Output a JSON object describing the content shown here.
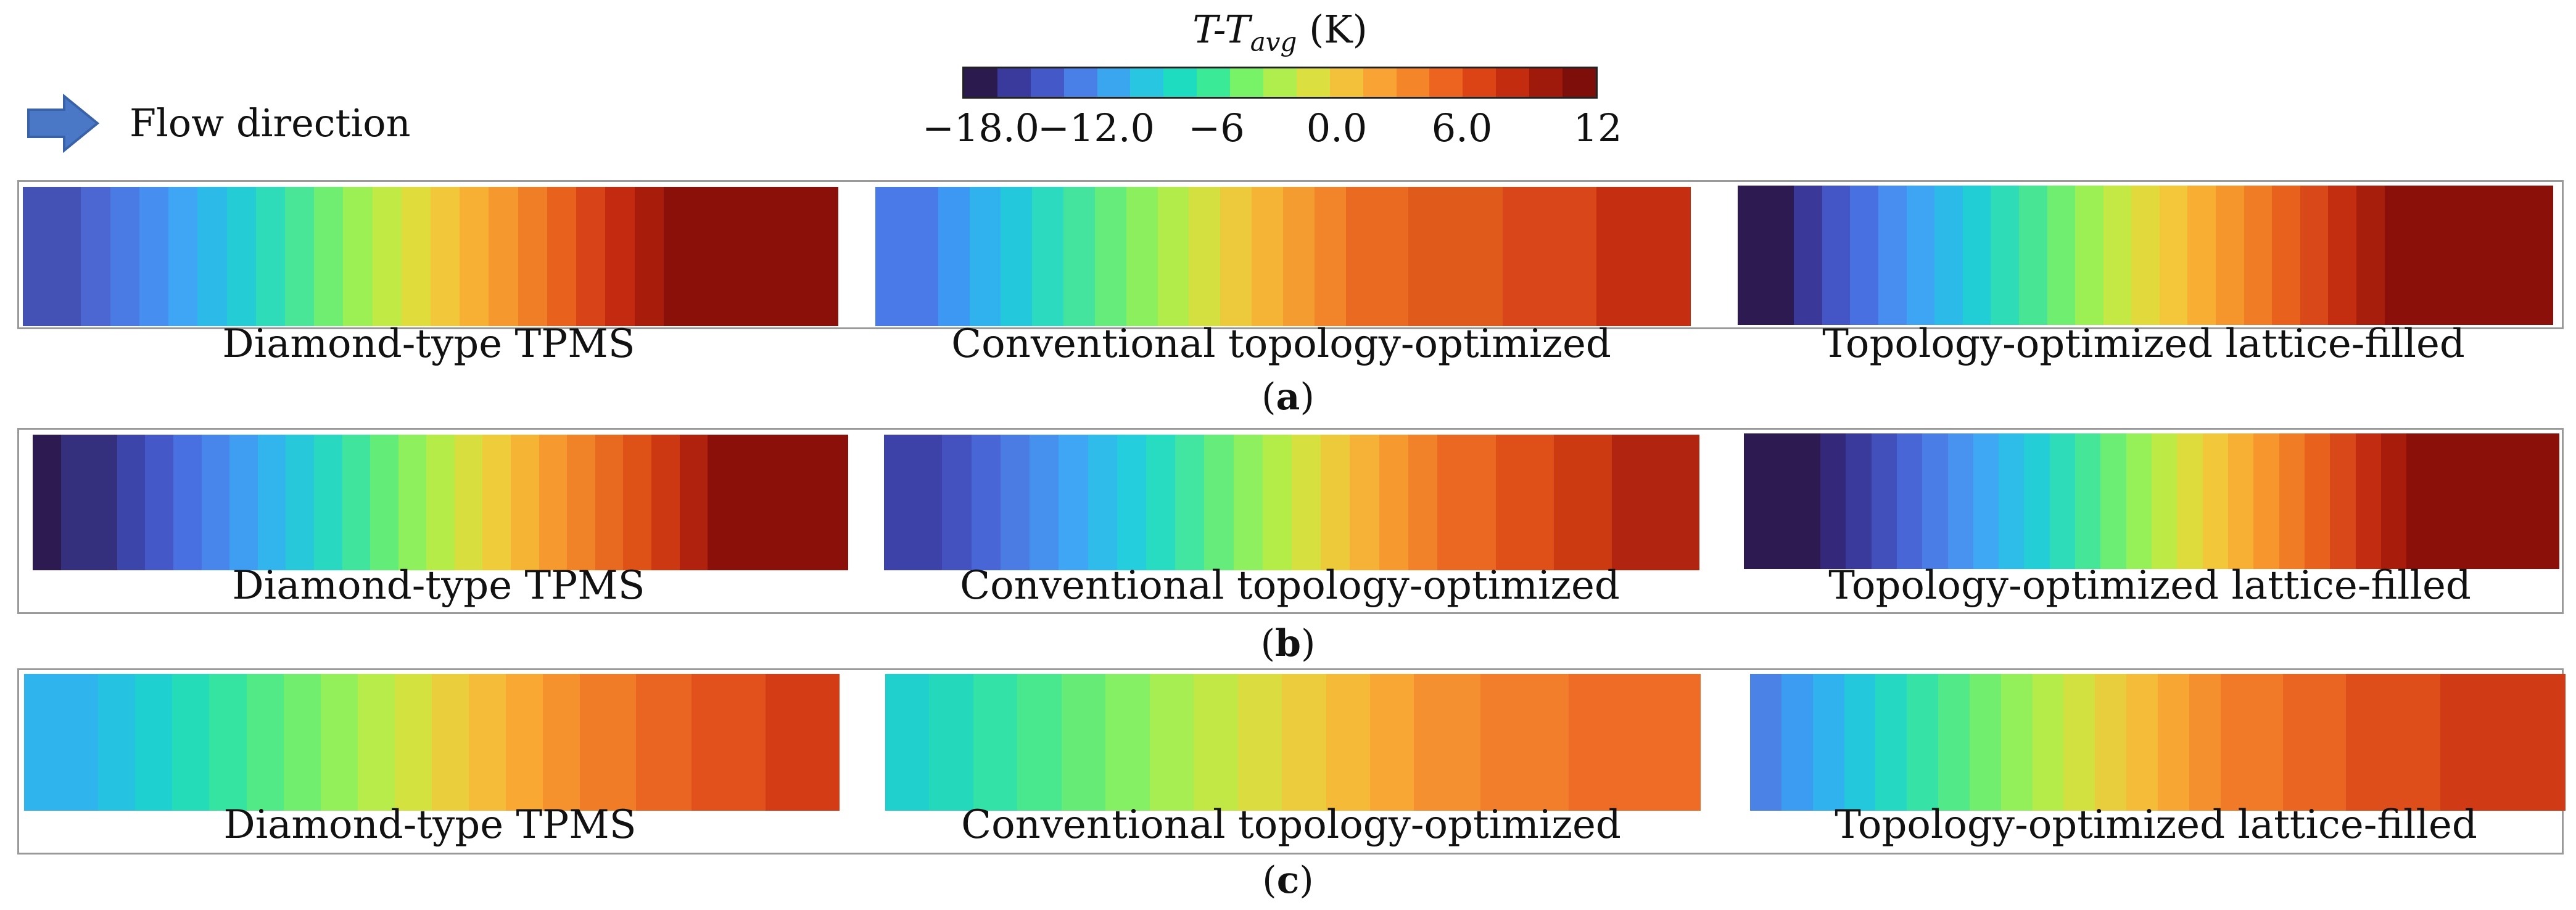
{
  "colorbar": {
    "title_main": "T-T",
    "title_sub": "avg",
    "title_unit": "(K)",
    "colors": [
      "#2b1a4e",
      "#3a3a9c",
      "#4458c8",
      "#4880e8",
      "#3aa6f0",
      "#28c6e0",
      "#1edcc0",
      "#3aea96",
      "#78f266",
      "#b0ee4e",
      "#dbe040",
      "#f3c13a",
      "#f8a333",
      "#f48629",
      "#ec6420",
      "#dc4416",
      "#c42c10",
      "#a01a0c",
      "#7e0e0a"
    ],
    "ticks": [
      "−18.0",
      "−12.0",
      "−6",
      "0.0",
      "6.0",
      "12"
    ],
    "range": [
      -18,
      12
    ]
  },
  "flow": {
    "label": "Flow direction"
  },
  "rows": [
    {
      "tag_open": "(",
      "tag": "a",
      "tag_close": ")",
      "panels": [
        {
          "label": "Diamond-type TPMS",
          "colors": [
            "#4452b6",
            "#4c66d2",
            "#4a7ae4",
            "#468ef0",
            "#3ea6f4",
            "#2cbae8",
            "#24cdd6",
            "#2edcba",
            "#48e696",
            "#6fee72",
            "#9cf054",
            "#c2ea44",
            "#e0dc3c",
            "#f2c83a",
            "#f7b033",
            "#f5982d",
            "#f07e26",
            "#e8621e",
            "#d84418",
            "#c42a10",
            "#a81c0c",
            "#8b100a"
          ],
          "widths": [
            2,
            1,
            1,
            1,
            1,
            1,
            1,
            1,
            1,
            1,
            1,
            1,
            1,
            1,
            1,
            1,
            1,
            1,
            1,
            1,
            1,
            6
          ]
        },
        {
          "label": "Conventional topology-optimized",
          "colors": [
            "#4a7ae8",
            "#3c98f2",
            "#30b2ee",
            "#24c8dc",
            "#2cdac0",
            "#44e49e",
            "#66ec7a",
            "#8cf05e",
            "#b2ec4a",
            "#d4e040",
            "#ecca3c",
            "#f6b436",
            "#f59c30",
            "#f2842a",
            "#ea6a22",
            "#e05a1c",
            "#d8461a",
            "#c62e12"
          ],
          "widths": [
            2,
            1,
            1,
            1,
            1,
            1,
            1,
            1,
            1,
            1,
            1,
            1,
            1,
            1,
            2,
            3,
            3,
            3
          ]
        },
        {
          "label": "Topology-optimized lattice-filled",
          "colors": [
            "#2c1a50",
            "#3a3898",
            "#4456c6",
            "#4870e0",
            "#488ef0",
            "#3ea4f4",
            "#2cbae8",
            "#22ced6",
            "#2edcb8",
            "#48e694",
            "#70ee70",
            "#9cf054",
            "#c4e844",
            "#e2da3c",
            "#f4c63a",
            "#f8ae33",
            "#f5962d",
            "#f07c26",
            "#e8621e",
            "#d84818",
            "#c42e10",
            "#a81e0c",
            "#8b100a"
          ],
          "widths": [
            2,
            1,
            1,
            1,
            1,
            1,
            1,
            1,
            1,
            1,
            1,
            1,
            1,
            1,
            1,
            1,
            1,
            1,
            1,
            1,
            1,
            1,
            6
          ]
        }
      ]
    },
    {
      "tag_open": "(",
      "tag": "b",
      "tag_close": ")",
      "panels": [
        {
          "label": "Diamond-type TPMS",
          "colors": [
            "#2c1a50",
            "#34307e",
            "#3c46aa",
            "#4458c8",
            "#4870e0",
            "#4886ec",
            "#409ef2",
            "#32b4ec",
            "#26c8da",
            "#28d8c0",
            "#40e49c",
            "#64ec78",
            "#8ef05c",
            "#b6ec48",
            "#d8de3e",
            "#eecc3a",
            "#f6b435",
            "#f69a2f",
            "#f08228",
            "#e86a20",
            "#de5218",
            "#cc3812",
            "#b0220e",
            "#8b100a"
          ],
          "widths": [
            1,
            2,
            1,
            1,
            1,
            1,
            1,
            1,
            1,
            1,
            1,
            1,
            1,
            1,
            1,
            1,
            1,
            1,
            1,
            1,
            1,
            1,
            1,
            5
          ]
        },
        {
          "label": "Conventional topology-optimized",
          "colors": [
            "#3c42a8",
            "#4452c0",
            "#4866d6",
            "#4a7ce4",
            "#4690ee",
            "#3ea6f4",
            "#30bcea",
            "#24cedc",
            "#28dcc2",
            "#42e6a0",
            "#66ec7a",
            "#8ef05e",
            "#b4ec48",
            "#d6e03e",
            "#ecca3a",
            "#f6b236",
            "#f69a30",
            "#f2822a",
            "#ea6822",
            "#de5018",
            "#cc3a12",
            "#b02410"
          ],
          "widths": [
            2,
            1,
            1,
            1,
            1,
            1,
            1,
            1,
            1,
            1,
            1,
            1,
            1,
            1,
            1,
            1,
            1,
            1,
            2,
            2,
            2,
            3
          ]
        },
        {
          "label": "Topology-optimized lattice-filled",
          "colors": [
            "#2c1a50",
            "#34287a",
            "#3a3a9c",
            "#4250bc",
            "#4866d6",
            "#4a7ee6",
            "#4892f0",
            "#3ea8f4",
            "#2ebce8",
            "#24ced6",
            "#2edcba",
            "#46e698",
            "#6cee74",
            "#96f058",
            "#beea46",
            "#dedc3c",
            "#f2c83a",
            "#f8b034",
            "#f6962d",
            "#f07c26",
            "#e8621e",
            "#d84818",
            "#c22c10",
            "#a81c0c",
            "#8b100a"
          ],
          "widths": [
            3,
            1,
            1,
            1,
            1,
            1,
            1,
            1,
            1,
            1,
            1,
            1,
            1,
            1,
            1,
            1,
            1,
            1,
            1,
            1,
            1,
            1,
            1,
            1,
            6
          ]
        }
      ]
    },
    {
      "tag_open": "(",
      "tag": "c",
      "tag_close": ")",
      "panels": [
        {
          "label": "Diamond-type TPMS",
          "colors": [
            "#30b4ee",
            "#26c2e2",
            "#1ed0d0",
            "#24dcb8",
            "#36e4a2",
            "#52ea86",
            "#72ee6e",
            "#94f05a",
            "#b8ec4a",
            "#d4e240",
            "#eace3c",
            "#f4bc38",
            "#f8a833",
            "#f5922e",
            "#f07c28",
            "#ea6422",
            "#e2501c",
            "#d43c16"
          ],
          "widths": [
            4,
            2,
            2,
            2,
            2,
            2,
            2,
            2,
            2,
            2,
            2,
            2,
            2,
            2,
            3,
            3,
            4,
            4
          ]
        },
        {
          "label": "Conventional topology-optimized",
          "colors": [
            "#20d0cc",
            "#24d8bc",
            "#32e2a6",
            "#4ae88e",
            "#66ec76",
            "#86f064",
            "#a6ee52",
            "#c2e846",
            "#dadc40",
            "#eccc3c",
            "#f4ba38",
            "#f8a634",
            "#f59030",
            "#f27e2c",
            "#ee6c26"
          ],
          "widths": [
            2,
            2,
            2,
            2,
            2,
            2,
            2,
            2,
            2,
            2,
            2,
            2,
            3,
            4,
            6
          ]
        },
        {
          "label": "Topology-optimized lattice-filled",
          "colors": [
            "#4a82e6",
            "#3c9cf2",
            "#30b2ee",
            "#24c8dc",
            "#24d8c2",
            "#36e2a6",
            "#52ea88",
            "#72ee6e",
            "#94f05a",
            "#b6ec4a",
            "#d2e040",
            "#e8ce3c",
            "#f4bc38",
            "#f8a633",
            "#f5902e",
            "#f07a28",
            "#ea6422",
            "#de4e1a",
            "#d03a14"
          ],
          "widths": [
            1,
            1,
            1,
            1,
            1,
            1,
            1,
            1,
            1,
            1,
            1,
            1,
            1,
            1,
            1,
            2,
            2,
            3,
            4
          ]
        }
      ]
    }
  ]
}
